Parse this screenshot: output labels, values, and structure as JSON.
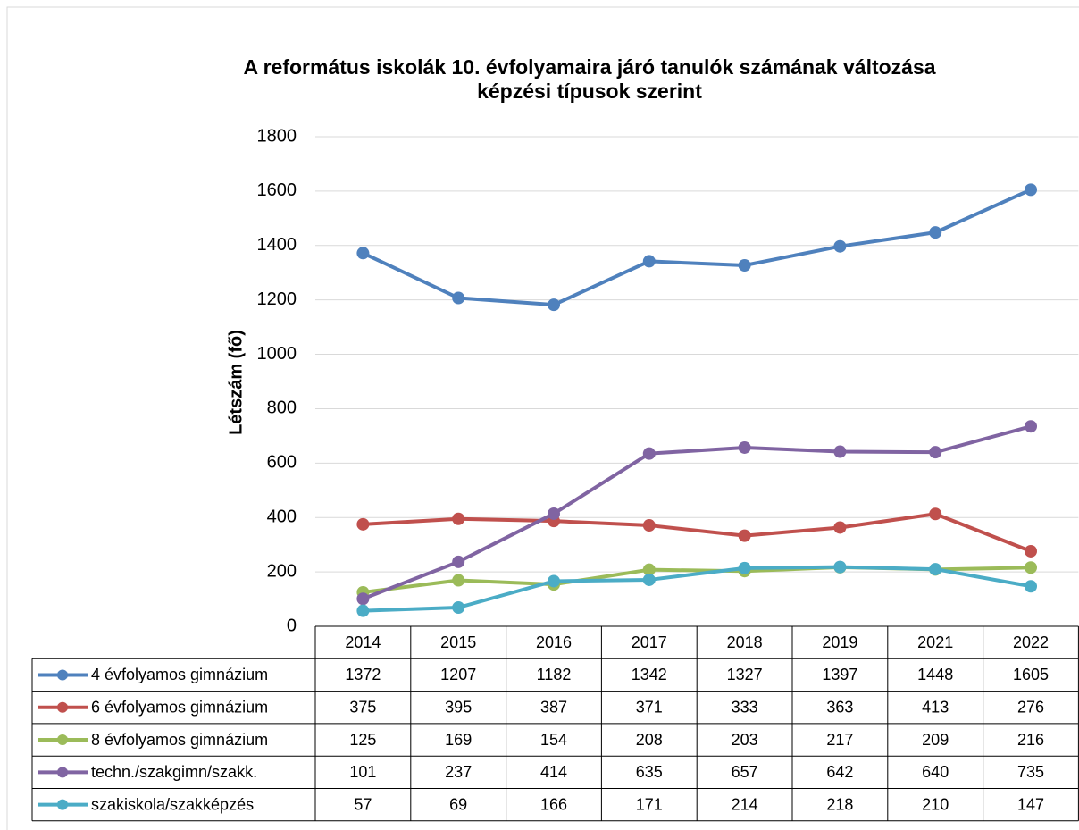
{
  "chart_data": {
    "type": "line",
    "title": "A református iskolák 10. évfolyamaira járó tanulók számának változása",
    "subtitle": "képzési típusok szerint",
    "y_label": "Létszám (fő)",
    "categories": [
      "2014",
      "2015",
      "2016",
      "2017",
      "2018",
      "2019",
      "2021",
      "2022"
    ],
    "series": [
      {
        "name": "4 évfolyamos gimnázium",
        "color": "#4f81bd",
        "values": [
          1372,
          1207,
          1182,
          1342,
          1327,
          1397,
          1448,
          1605
        ]
      },
      {
        "name": "6 évfolyamos gimnázium",
        "color": "#c0504d",
        "values": [
          375,
          395,
          387,
          371,
          333,
          363,
          413,
          276
        ]
      },
      {
        "name": "8 évfolyamos gimnázium",
        "color": "#9bbb59",
        "values": [
          125,
          169,
          154,
          208,
          203,
          217,
          209,
          216
        ]
      },
      {
        "name": "techn./szakgimn/szakk.",
        "color": "#8064a2",
        "values": [
          101,
          237,
          414,
          635,
          657,
          642,
          640,
          735
        ]
      },
      {
        "name": "szakiskola/szakképzés",
        "color": "#4bacc6",
        "values": [
          57,
          69,
          166,
          171,
          214,
          218,
          210,
          147
        ]
      }
    ],
    "ylim": [
      0,
      1800
    ],
    "yticks": [
      0,
      200,
      400,
      600,
      800,
      1000,
      1200,
      1400,
      1600,
      1800
    ],
    "grid": true
  }
}
